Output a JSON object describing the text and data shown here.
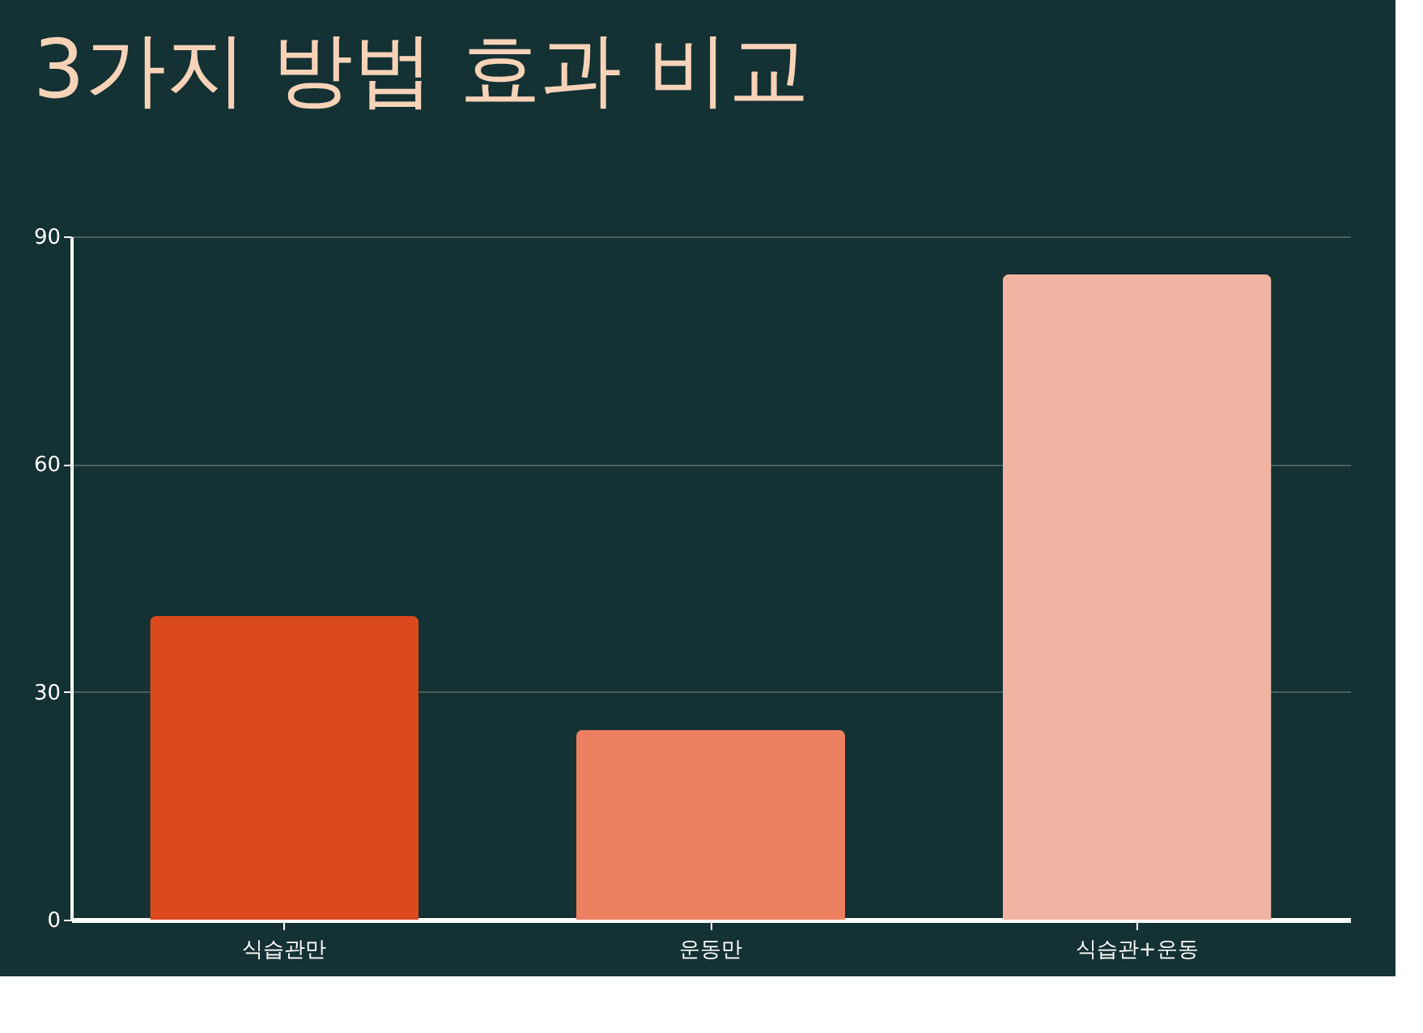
{
  "chart_data": {
    "type": "bar",
    "title": "3가지 방법 효과 비교",
    "categories": [
      "식습관만",
      "운동만",
      "식습관+운동"
    ],
    "values": [
      40,
      25,
      85
    ],
    "colors": [
      "#db4a1d",
      "#eb7f60",
      "#f2b4a2"
    ],
    "ylim": [
      0,
      90
    ],
    "yticks": [
      0,
      30,
      60,
      90
    ],
    "grid": "y"
  }
}
